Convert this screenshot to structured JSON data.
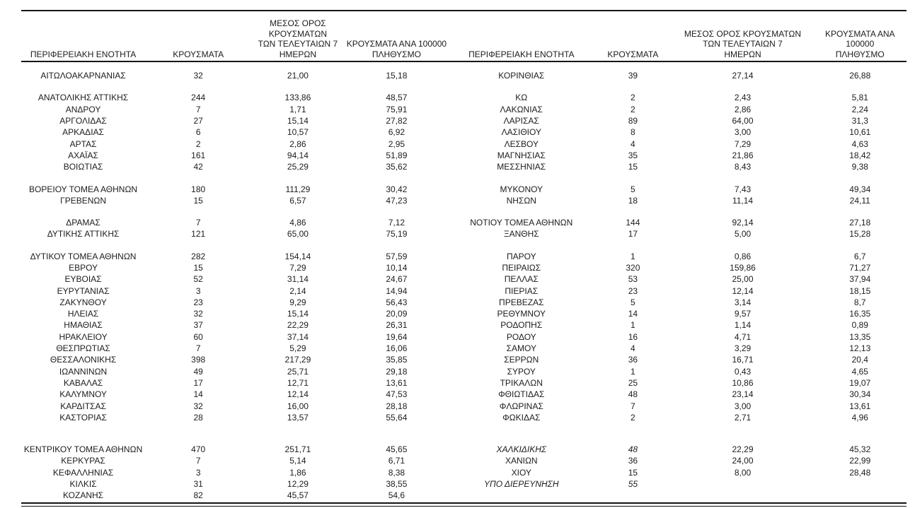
{
  "document": {
    "background_color": "#ffffff",
    "text_color": "#1c1c1c",
    "rule_color": "#141414"
  },
  "table": {
    "headers": {
      "region": "ΠΕΡΙΦΕΡΕΙΑΚΗ ΕΝΟΤΗΤΑ",
      "cases": "ΚΡΟΥΣΜΑΤΑ",
      "avg7": [
        "ΜΕΣΟΣ ΟΡΟΣ ΚΡΟΥΣΜΑΤΩΝ",
        "ΤΩΝ ΤΕΛΕΥΤΑΙΩΝ 7",
        "ΗΜΕΡΩΝ"
      ],
      "per100k": [
        "ΚΡΟΥΣΜΑΤΑ ΑΝΑ 100000",
        "ΠΛΗΘΥΣΜΟ"
      ]
    },
    "rows": [
      {
        "left": [
          "ΑΙΤΩΛΟΑΚΑΡΝΑΝΙΑΣ",
          "32",
          "21,00",
          "15,18"
        ],
        "right": [
          "ΚΟΡΙΝΘΙΑΣ",
          "39",
          "27,14",
          "26,88"
        ]
      },
      {
        "spacer": true
      },
      {
        "left": [
          "ΑΝΑΤΟΛΙΚΗΣ ΑΤΤΙΚΗΣ",
          "244",
          "133,86",
          "48,57"
        ],
        "right": [
          "ΚΩ",
          "2",
          "2,43",
          "5,81"
        ]
      },
      {
        "left": [
          "ΑΝΔΡΟΥ",
          "7",
          "1,71",
          "75,91"
        ],
        "right": [
          "ΛΑΚΩΝΙΑΣ",
          "2",
          "2,86",
          "2,24"
        ]
      },
      {
        "left": [
          "ΑΡΓΟΛΙΔΑΣ",
          "27",
          "15,14",
          "27,82"
        ],
        "right": [
          "ΛΑΡΙΣΑΣ",
          "89",
          "64,00",
          "31,3"
        ]
      },
      {
        "left": [
          "ΑΡΚΑΔΙΑΣ",
          "6",
          "10,57",
          "6,92"
        ],
        "right": [
          "ΛΑΣΙΘΙΟΥ",
          "8",
          "3,00",
          "10,61"
        ]
      },
      {
        "left": [
          "ΑΡΤΑΣ",
          "2",
          "2,86",
          "2,95"
        ],
        "right": [
          "ΛΕΣΒΟΥ",
          "4",
          "7,29",
          "4,63"
        ]
      },
      {
        "left": [
          "ΑΧΑΪΑΣ",
          "161",
          "94,14",
          "51,89"
        ],
        "right": [
          "ΜΑΓΝΗΣΙΑΣ",
          "35",
          "21,86",
          "18,42"
        ]
      },
      {
        "left": [
          "ΒΟΙΩΤΙΑΣ",
          "42",
          "25,29",
          "35,62"
        ],
        "right": [
          "ΜΕΣΣΗΝΙΑΣ",
          "15",
          "8,43",
          "9,38"
        ]
      },
      {
        "spacer": true
      },
      {
        "left": [
          "ΒΟΡΕΙΟΥ ΤΟΜΕΑ ΑΘΗΝΩΝ",
          "180",
          "111,29",
          "30,42"
        ],
        "right": [
          "ΜΥΚΟΝΟΥ",
          "5",
          "7,43",
          "49,34"
        ]
      },
      {
        "left": [
          "ΓΡΕΒΕΝΩΝ",
          "15",
          "6,57",
          "47,23"
        ],
        "right": [
          "ΝΗΣΩΝ",
          "18",
          "11,14",
          "24,11"
        ]
      },
      {
        "spacer": true
      },
      {
        "left": [
          "ΔΡΑΜΑΣ",
          "7",
          "4,86",
          "7,12"
        ],
        "right": [
          "ΝΟΤΙΟΥ ΤΟΜΕΑ ΑΘΗΝΩΝ",
          "144",
          "92,14",
          "27,18"
        ]
      },
      {
        "left": [
          "ΔΥΤΙΚΗΣ ΑΤΤΙΚΗΣ",
          "121",
          "65,00",
          "75,19"
        ],
        "right": [
          "ΞΑΝΘΗΣ",
          "17",
          "5,00",
          "15,28"
        ]
      },
      {
        "spacer": true
      },
      {
        "left": [
          "ΔΥΤΙΚΟΥ ΤΟΜΕΑ ΑΘΗΝΩΝ",
          "282",
          "154,14",
          "57,59"
        ],
        "right": [
          "ΠΑΡΟΥ",
          "1",
          "0,86",
          "6,7"
        ]
      },
      {
        "left": [
          "ΕΒΡΟΥ",
          "15",
          "7,29",
          "10,14"
        ],
        "right": [
          "ΠΕΙΡΑΙΩΣ",
          "320",
          "159,86",
          "71,27"
        ]
      },
      {
        "left": [
          "ΕΥΒΟΙΑΣ",
          "52",
          "31,14",
          "24,67"
        ],
        "right": [
          "ΠΕΛΛΑΣ",
          "53",
          "25,00",
          "37,94"
        ]
      },
      {
        "left": [
          "ΕΥΡΥΤΑΝΙΑΣ",
          "3",
          "2,14",
          "14,94"
        ],
        "right": [
          "ΠΙΕΡΙΑΣ",
          "23",
          "12,14",
          "18,15"
        ]
      },
      {
        "left": [
          "ΖΑΚΥΝΘΟΥ",
          "23",
          "9,29",
          "56,43"
        ],
        "right": [
          "ΠΡΕΒΕΖΑΣ",
          "5",
          "3,14",
          "8,7"
        ]
      },
      {
        "left": [
          "ΗΛΕΙΑΣ",
          "32",
          "15,14",
          "20,09"
        ],
        "right": [
          "ΡΕΘΥΜΝΟΥ",
          "14",
          "9,57",
          "16,35"
        ]
      },
      {
        "left": [
          "ΗΜΑΘΙΑΣ",
          "37",
          "22,29",
          "26,31"
        ],
        "right": [
          "ΡΟΔΟΠΗΣ",
          "1",
          "1,14",
          "0,89"
        ]
      },
      {
        "left": [
          "ΗΡΑΚΛΕΙΟΥ",
          "60",
          "37,14",
          "19,64"
        ],
        "right": [
          "ΡΟΔΟΥ",
          "16",
          "4,71",
          "13,35"
        ]
      },
      {
        "left": [
          "ΘΕΣΠΡΩΤΙΑΣ",
          "7",
          "5,29",
          "16,06"
        ],
        "right": [
          "ΣΑΜΟΥ",
          "4",
          "3,29",
          "12,13"
        ]
      },
      {
        "left": [
          "ΘΕΣΣΑΛΟΝΙΚΗΣ",
          "398",
          "217,29",
          "35,85"
        ],
        "right": [
          "ΣΕΡΡΩΝ",
          "36",
          "16,71",
          "20,4"
        ]
      },
      {
        "left": [
          "ΙΩΑΝΝΙΝΩΝ",
          "49",
          "25,71",
          "29,18"
        ],
        "right": [
          "ΣΥΡΟΥ",
          "1",
          "0,43",
          "4,65"
        ]
      },
      {
        "left": [
          "ΚΑΒΑΛΑΣ",
          "17",
          "12,71",
          "13,61"
        ],
        "right": [
          "ΤΡΙΚΑΛΩΝ",
          "25",
          "10,86",
          "19,07"
        ]
      },
      {
        "left": [
          "ΚΑΛΥΜΝΟΥ",
          "14",
          "12,14",
          "47,53"
        ],
        "right": [
          "ΦΘΙΩΤΙΔΑΣ",
          "48",
          "23,14",
          "30,34"
        ]
      },
      {
        "left": [
          "ΚΑΡΔΙΤΣΑΣ",
          "32",
          "16,00",
          "28,18"
        ],
        "right": [
          "ΦΛΩΡΙΝΑΣ",
          "7",
          "3,00",
          "13,61"
        ]
      },
      {
        "left": [
          "ΚΑΣΤΟΡΙΑΣ",
          "28",
          "13,57",
          "55,64"
        ],
        "right": [
          "ΦΩΚΙΔΑΣ",
          "2",
          "2,71",
          "4,96"
        ]
      },
      {
        "spacer": "large"
      },
      {
        "left": [
          "ΚΕΝΤΡΙΚΟΥ ΤΟΜΕΑ ΑΘΗΝΩΝ",
          "470",
          "251,71",
          "45,65"
        ],
        "right": [
          "ΧΑΛΚΙΔΙΚΗΣ",
          "48",
          "22,29",
          "45,32"
        ],
        "right_italic": [
          true,
          true,
          false,
          false
        ]
      },
      {
        "left": [
          "ΚΕΡΚΥΡΑΣ",
          "7",
          "5,14",
          "6,71"
        ],
        "right": [
          "ΧΑΝΙΩΝ",
          "36",
          "24,00",
          "22,99"
        ]
      },
      {
        "left": [
          "ΚΕΦΑΛΛΗΝΙΑΣ",
          "3",
          "1,86",
          "8,38"
        ],
        "right": [
          "ΧΙΟΥ",
          "15",
          "8,00",
          "28,48"
        ]
      },
      {
        "left": [
          "ΚΙΛΚΙΣ",
          "31",
          "12,29",
          "38,55"
        ],
        "right": [
          "ΥΠΟ ΔΙΕΡΕΥΝΗΣΗ",
          "55",
          "",
          ""
        ],
        "right_italic": [
          true,
          true,
          false,
          false
        ]
      },
      {
        "left": [
          "ΚΟΖΑΝΗΣ",
          "82",
          "45,57",
          "54,6"
        ],
        "right": [
          "",
          "",
          "",
          ""
        ]
      }
    ]
  }
}
